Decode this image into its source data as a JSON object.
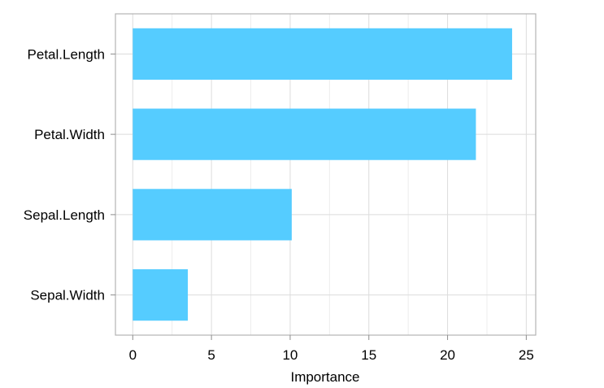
{
  "chart_data": {
    "type": "bar",
    "orientation": "horizontal",
    "categories": [
      "Petal.Length",
      "Petal.Width",
      "Sepal.Length",
      "Sepal.Width"
    ],
    "values": [
      24.1,
      21.8,
      10.1,
      3.5
    ],
    "xlabel": "Importance",
    "ylabel": "",
    "xlim": [
      -1.1,
      25.6
    ],
    "xticks": [
      0,
      5,
      10,
      15,
      20,
      25
    ],
    "grid": true,
    "bar_color": "#55ccff"
  }
}
